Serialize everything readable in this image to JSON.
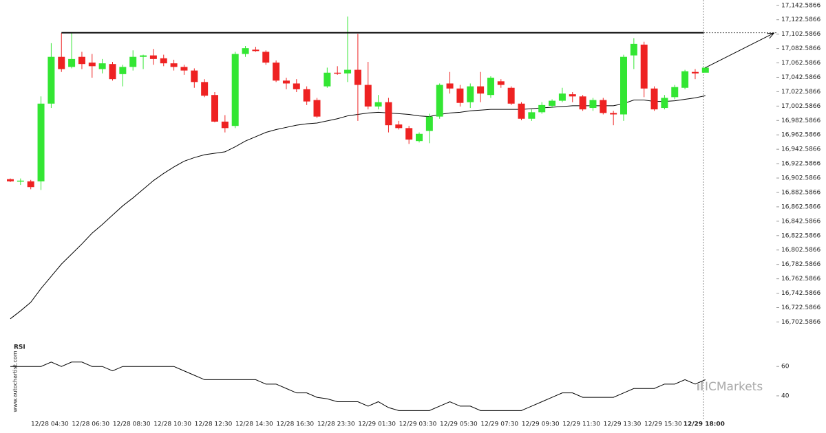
{
  "chart_data": [
    {
      "type": "candlestick",
      "categories": [
        null,
        null,
        null,
        null,
        "12/28 04:30",
        null,
        null,
        null,
        "12/28 06:30",
        null,
        null,
        null,
        "12/28 08:30",
        null,
        null,
        null,
        "12/28 10:30",
        null,
        null,
        null,
        "12/28 12:30",
        null,
        null,
        null,
        "12/28 14:30",
        null,
        null,
        null,
        "12/28 16:30",
        null,
        null,
        null,
        "12/28 23:30",
        null,
        null,
        null,
        "12/29 01:30",
        null,
        null,
        null,
        "12/29 03:30",
        null,
        null,
        null,
        "12/29 05:30",
        null,
        null,
        null,
        "12/29 07:30",
        null,
        null,
        null,
        "12/29 09:30",
        null,
        null,
        null,
        "12/29 11:30",
        null,
        null,
        null,
        "12/29 13:30",
        null,
        null,
        null,
        "12/29 15:30",
        null,
        null,
        null,
        "12/29 18:00"
      ],
      "open": [
        16901,
        16898,
        16898,
        16898,
        17006,
        17071,
        17057,
        17071,
        17063,
        17054,
        17061,
        17047,
        17057,
        17071,
        17073,
        17069,
        17062,
        17057,
        17052,
        17036,
        17018,
        16981,
        16975,
        17075,
        17081,
        17078,
        17063,
        17038,
        17034,
        17026,
        17011,
        17030,
        17049,
        17048,
        17053,
        17032,
        17002,
        17008,
        16977,
        16972,
        16954,
        16968,
        16988,
        17034,
        17027,
        17008,
        17030,
        17018,
        17037,
        17028,
        17006,
        16985,
        16994,
        17003,
        17010,
        17019,
        17016,
        17000,
        17011,
        16993,
        16991,
        17073,
        17088,
        17027,
        17000,
        17015,
        17028,
        17050,
        17049
      ],
      "high": [
        16902,
        16902,
        16900,
        17016,
        17090,
        17104,
        17104,
        17078,
        17075,
        17068,
        17064,
        17060,
        17080,
        17074,
        17082,
        17074,
        17067,
        17060,
        17055,
        17040,
        17022,
        16990,
        17078,
        17086,
        17085,
        17080,
        17066,
        17042,
        17040,
        17030,
        17014,
        17056,
        17058,
        17127,
        17103,
        17064,
        17018,
        17014,
        16982,
        16975,
        16966,
        16992,
        17034,
        17050,
        17032,
        17034,
        17050,
        17044,
        17040,
        17030,
        17008,
        16998,
        17008,
        17012,
        17028,
        17022,
        17018,
        17014,
        17014,
        16996,
        17074,
        17097,
        17092,
        17030,
        17018,
        17032,
        17053,
        17054,
        17057
      ],
      "low": [
        16897,
        16893,
        16887,
        16886,
        17000,
        17050,
        17055,
        17054,
        17042,
        17048,
        17038,
        17030,
        17052,
        17054,
        17060,
        17058,
        17052,
        17046,
        17028,
        17015,
        16980,
        16966,
        16972,
        17071,
        17078,
        17060,
        17036,
        17026,
        17022,
        17004,
        16986,
        17028,
        17046,
        17036,
        16982,
        16998,
        16998,
        16966,
        16970,
        16950,
        16952,
        16951,
        16985,
        17020,
        17002,
        17000,
        17008,
        17014,
        17028,
        17004,
        16983,
        16982,
        16992,
        17000,
        17008,
        17008,
        16996,
        16996,
        16991,
        16976,
        16982,
        17054,
        17015,
        16996,
        16998,
        17012,
        17026,
        17040,
        17050
      ],
      "close": [
        16898,
        16899,
        16890,
        17006,
        17071,
        17054,
        17068,
        17061,
        17058,
        17062,
        17040,
        17057,
        17071,
        17073,
        17068,
        17062,
        17057,
        17052,
        17036,
        17017,
        16981,
        16972,
        17075,
        17083,
        17079,
        17063,
        17038,
        17034,
        17026,
        17009,
        16988,
        17049,
        17048,
        17053,
        17032,
        17002,
        17008,
        16976,
        16972,
        16956,
        16964,
        16988,
        17032,
        17027,
        17007,
        17030,
        17020,
        17042,
        17032,
        17006,
        16985,
        16994,
        17004,
        17010,
        17020,
        17016,
        16998,
        17011,
        16993,
        16991,
        17071,
        17089,
        17027,
        16998,
        17014,
        17029,
        17051,
        17048,
        17056
      ],
      "up_color": "#33e633",
      "down_color": "#ee2222",
      "moving_average": {
        "color": "#000000",
        "values": [
          16707,
          16718,
          16730,
          16749,
          16766,
          16783,
          16797,
          16811,
          16826,
          16838,
          16851,
          16864,
          16875,
          16887,
          16899,
          16909,
          16918,
          16926,
          16931,
          16935,
          16937,
          16939,
          16946,
          16954,
          16960,
          16966,
          16970,
          16973,
          16976,
          16978,
          16979,
          16982,
          16985,
          16989,
          16991,
          16993,
          16994,
          16993,
          16992,
          16991,
          16989,
          16988,
          16991,
          16993,
          16994,
          16996,
          16997,
          16998,
          16998,
          16998,
          16998,
          16999,
          17000,
          17001,
          17002,
          17003,
          17003,
          17003,
          17003,
          17003,
          17006,
          17011,
          17011,
          17009,
          17009,
          17010,
          17012,
          17014,
          17017
        ]
      },
      "level": {
        "value": 17104.5,
        "from": 5
      },
      "projection": {
        "x": [
          68,
          74.7
        ],
        "y": [
          17056,
          17104
        ]
      },
      "ylim": [
        16682,
        17150
      ],
      "yticks": [
        {
          "value": 16702.5866,
          "label": "16,702.5866"
        },
        {
          "value": 16722.5866,
          "label": "16,722.5866"
        },
        {
          "value": 16742.5866,
          "label": "16,742.5866"
        },
        {
          "value": 16762.5866,
          "label": "16,762.5866"
        },
        {
          "value": 16782.5866,
          "label": "16,782.5866"
        },
        {
          "value": 16802.5866,
          "label": "16,802.5866"
        },
        {
          "value": 16822.5866,
          "label": "16,822.5866"
        },
        {
          "value": 16842.5866,
          "label": "16,842.5866"
        },
        {
          "value": 16862.5866,
          "label": "16,862.5866"
        },
        {
          "value": 16882.5866,
          "label": "16,882.5866"
        },
        {
          "value": 16902.5866,
          "label": "16,902.5866"
        },
        {
          "value": 16922.5866,
          "label": "16,922.5866"
        },
        {
          "value": 16942.5866,
          "label": "16,942.5866"
        },
        {
          "value": 16962.5866,
          "label": "16,962.5866"
        },
        {
          "value": 16982.5866,
          "label": "16,982.5866"
        },
        {
          "value": 17002.5866,
          "label": "17,002.5866"
        },
        {
          "value": 17022.5866,
          "label": "17,022.5866"
        },
        {
          "value": 17042.5866,
          "label": "17,042.5866"
        },
        {
          "value": 17062.5866,
          "label": "17,062.5866"
        },
        {
          "value": 17082.5866,
          "label": "17,082.5866"
        },
        {
          "value": 17102.5866,
          "label": "17,102.5866"
        },
        {
          "value": 17122.5866,
          "label": "17,122.5866"
        },
        {
          "value": 17142.5866,
          "label": "17,142.5866"
        }
      ],
      "watermark": "www.autochartist.com",
      "logo": "ICMarkets"
    },
    {
      "type": "line",
      "title": "RSI",
      "color": "#000000",
      "values": [
        60,
        60,
        60,
        60,
        63,
        60,
        63,
        63,
        60,
        60,
        57,
        60,
        60,
        60,
        60,
        60,
        60,
        57,
        54,
        51,
        51,
        51,
        51,
        51,
        51,
        48,
        48,
        45,
        42,
        42,
        39,
        38,
        36,
        36,
        36,
        33,
        36,
        32,
        30,
        30,
        30,
        30,
        33,
        36,
        33,
        33,
        30,
        30,
        30,
        30,
        30,
        33,
        36,
        39,
        42,
        42,
        39,
        39,
        39,
        39,
        42,
        45,
        45,
        45,
        48,
        48,
        51,
        48,
        51
      ],
      "ylim": [
        25,
        76
      ],
      "yticks": [
        60,
        40
      ]
    }
  ]
}
